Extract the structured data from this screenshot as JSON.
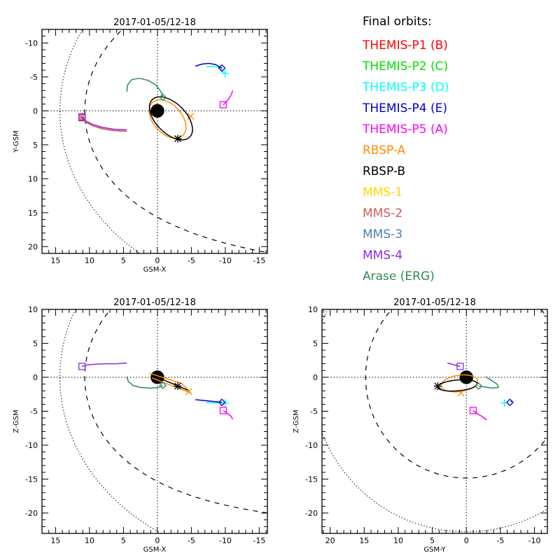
{
  "legend": {
    "title": "Final orbits:",
    "items": [
      {
        "label": "THEMIS-P1 (B)",
        "color": "#ff0000"
      },
      {
        "label": "THEMIS-P2 (C)",
        "color": "#00e000"
      },
      {
        "label": "THEMIS-P3 (D)",
        "color": "#00ffff"
      },
      {
        "label": "THEMIS-P4 (E)",
        "color": "#0000cc"
      },
      {
        "label": "THEMIS-P5 (A)",
        "color": "#ff00ff"
      },
      {
        "label": "RBSP-A",
        "color": "#ff8c00"
      },
      {
        "label": "RBSP-B",
        "color": "#000000"
      },
      {
        "label": "MMS-1",
        "color": "#ffd700"
      },
      {
        "label": "MMS-2",
        "color": "#cd5c5c"
      },
      {
        "label": "MMS-3",
        "color": "#4682b4"
      },
      {
        "label": "MMS-4",
        "color": "#8a2be2"
      },
      {
        "label": "Arase (ERG)",
        "color": "#2e8b57"
      }
    ]
  },
  "chart_data": [
    {
      "type": "line",
      "panel": "xy",
      "title": "2017-01-05/12-18",
      "xlabel": "GSM-X",
      "ylabel": "Y-GSM",
      "xlim": [
        17,
        -16.2
      ],
      "ylim": [
        -12,
        21
      ],
      "xticks": [
        15,
        10,
        5,
        0,
        -5,
        -10,
        -15
      ],
      "yticks": [
        -10,
        -5,
        0,
        5,
        10,
        15,
        20
      ],
      "xtick_labels": [
        "15",
        "10",
        "5",
        "0",
        "-5",
        "-10",
        "-15"
      ],
      "ytick_labels": [
        "-10",
        "-5",
        "0",
        "5",
        "10",
        "15",
        "20"
      ],
      "magnetopause": {
        "r0": 10.7,
        "alpha": 0.55
      },
      "bow_shock": {
        "L": 22.7,
        "eps": 0.58
      },
      "series": [
        {
          "name": "THEMIS-P1 (B)",
          "marker": "square",
          "points": [
            [
              11.1,
              1.0
            ],
            [
              10.5,
              1.6
            ],
            [
              9.5,
              2.1
            ],
            [
              8.2,
              2.5
            ],
            [
              6.5,
              2.8
            ],
            [
              4.5,
              2.9
            ]
          ],
          "offset": [
            0,
            0.1
          ]
        },
        {
          "name": "THEMIS-P3 (D)",
          "marker": "plus",
          "points": [
            [
              -7.2,
              -6.5
            ],
            [
              -8.5,
              -6.5
            ],
            [
              -9.3,
              -6.3
            ],
            [
              -9.7,
              -5.7
            ],
            [
              -10,
              -5.5
            ]
          ]
        },
        {
          "name": "THEMIS-P4 (E)",
          "marker": "diamond",
          "points": [
            [
              -5.6,
              -6.6
            ],
            [
              -6.6,
              -6.9
            ],
            [
              -7.6,
              -7.0
            ],
            [
              -8.6,
              -6.8
            ],
            [
              -9.3,
              -6.4
            ],
            [
              -9.5,
              -6.3
            ]
          ]
        },
        {
          "name": "THEMIS-P5 (A)",
          "marker": "square",
          "points": [
            [
              -11.1,
              -3.0
            ],
            [
              -10.8,
              -2.2
            ],
            [
              -10.3,
              -1.5
            ],
            [
              -9.7,
              -0.9
            ]
          ]
        },
        {
          "name": "RBSP-A",
          "marker": "x",
          "ellipse": {
            "cx": -1.5,
            "cy": 1.2,
            "rx": 3.3,
            "ry": 2.1,
            "rot": 48
          },
          "marker_at": [
            -4.9,
            0.8
          ]
        },
        {
          "name": "RBSP-B",
          "marker": "asterisk",
          "ellipse": {
            "cx": -2.0,
            "cy": 1.1,
            "rx": 3.9,
            "ry": 2.2,
            "rot": 45
          },
          "marker_at": [
            -3.0,
            4.1
          ]
        },
        {
          "name": "MMS-2",
          "marker": "asterisk",
          "points": [
            [
              11.1,
              1.0
            ],
            [
              10.5,
              1.7
            ],
            [
              9.5,
              2.2
            ],
            [
              8.2,
              2.6
            ],
            [
              6.5,
              2.9
            ],
            [
              4.5,
              3.0
            ]
          ]
        },
        {
          "name": "MMS-4",
          "marker": "square",
          "points": [
            [
              11.1,
              0.9
            ],
            [
              10.5,
              1.5
            ],
            [
              9.5,
              2.0
            ],
            [
              8.2,
              2.4
            ],
            [
              6.5,
              2.7
            ],
            [
              4.5,
              2.8
            ]
          ]
        },
        {
          "name": "Arase (ERG)",
          "marker": "diamond",
          "points": [
            [
              4.5,
              -2.8
            ],
            [
              4.4,
              -3.8
            ],
            [
              3.8,
              -4.6
            ],
            [
              2.7,
              -4.8
            ],
            [
              1.4,
              -4.5
            ],
            [
              0.2,
              -3.8
            ],
            [
              -0.6,
              -2.7
            ],
            [
              -0.8,
              -2.0
            ]
          ]
        }
      ]
    },
    {
      "type": "line",
      "panel": "xz",
      "title": "2017-01-05/12-18",
      "xlabel": "GSM-X",
      "ylabel": "Z-GSM",
      "xlim": [
        17,
        -16.2
      ],
      "ylim": [
        10,
        -23
      ],
      "xticks": [
        15,
        10,
        5,
        0,
        -5,
        -10,
        -15
      ],
      "yticks": [
        10,
        5,
        0,
        -5,
        -10,
        -15,
        -20
      ],
      "xtick_labels": [
        "15",
        "10",
        "5",
        "0",
        "-5",
        "-10",
        "-15"
      ],
      "ytick_labels": [
        "10",
        "5",
        "0",
        "-5",
        "-10",
        "-15",
        "-20"
      ],
      "magnetopause": {
        "r0": 10.7,
        "alpha": 0.52
      },
      "bow_shock": {
        "L": 22.7,
        "eps": 0.58
      },
      "series": [
        {
          "name": "THEMIS-P3 (D)",
          "marker": "plus",
          "points": [
            [
              -7.2,
              -3.7
            ],
            [
              -8.5,
              -3.8
            ],
            [
              -9.5,
              -3.7
            ],
            [
              -10,
              -3.8
            ]
          ]
        },
        {
          "name": "THEMIS-P4 (E)",
          "marker": "diamond",
          "points": [
            [
              -5.6,
              -3.3
            ],
            [
              -6.6,
              -3.4
            ],
            [
              -7.6,
              -3.5
            ],
            [
              -8.6,
              -3.6
            ],
            [
              -9.5,
              -3.7
            ]
          ]
        },
        {
          "name": "THEMIS-P5 (A)",
          "marker": "square",
          "points": [
            [
              -11.1,
              -6.2
            ],
            [
              -10.8,
              -5.7
            ],
            [
              -10.3,
              -5.3
            ],
            [
              -9.7,
              -4.9
            ]
          ]
        },
        {
          "name": "RBSP-A",
          "marker": "x",
          "segment": [
            [
              1.2,
              0.6
            ],
            [
              -3.6,
              -0.9
            ],
            [
              -4.9,
              -2.3
            ],
            [
              0.8,
              -0.1
            ]
          ],
          "marker_at": [
            -4.6,
            -2.1
          ]
        },
        {
          "name": "RBSP-B",
          "marker": "asterisk",
          "segment": [
            [
              0.5,
              0.2
            ],
            [
              -4.5,
              -1.9
            ]
          ],
          "marker_at": [
            -3.0,
            -1.3
          ]
        },
        {
          "name": "MMS-4",
          "marker": "square",
          "points": [
            [
              11.1,
              1.6
            ],
            [
              10.5,
              1.8
            ],
            [
              9.5,
              1.9
            ],
            [
              7.5,
              2.0
            ],
            [
              6.0,
              2.0
            ],
            [
              4.5,
              2.1
            ]
          ]
        },
        {
          "name": "Arase (ERG)",
          "marker": "diamond",
          "points": [
            [
              4.5,
              0.1
            ],
            [
              4.3,
              -0.6
            ],
            [
              3.6,
              -1.2
            ],
            [
              2.5,
              -1.5
            ],
            [
              1.0,
              -1.6
            ],
            [
              -0.2,
              -1.5
            ],
            [
              -0.8,
              -1.2
            ]
          ]
        }
      ]
    },
    {
      "type": "line",
      "panel": "yz",
      "title": "2017-01-05/12-18",
      "xlabel": "GSM-Y",
      "ylabel": "Z-GSM",
      "xlim": [
        21.2,
        -11.9
      ],
      "ylim": [
        10,
        -23
      ],
      "xticks": [
        20,
        15,
        10,
        5,
        0,
        -5,
        -10
      ],
      "yticks": [
        10,
        5,
        0,
        -5,
        -10,
        -15,
        -20
      ],
      "xtick_labels": [
        "20",
        "15",
        "10",
        "5",
        "0",
        "-5",
        "-10"
      ],
      "ytick_labels": [
        "10",
        "5",
        "0",
        "-5",
        "-10",
        "-15",
        "-20"
      ],
      "magnetopause_circle_r": 14.8,
      "bow_shock_circle_r": 22.7,
      "series": [
        {
          "name": "THEMIS-P3 (D)",
          "marker": "plus",
          "marker_at": [
            -5.6,
            -3.8
          ]
        },
        {
          "name": "THEMIS-P4 (E)",
          "marker": "diamond",
          "points": [
            [
              -6.8,
              -3.5
            ],
            [
              -6.5,
              -3.6
            ]
          ],
          "marker_at": [
            -6.4,
            -3.7
          ]
        },
        {
          "name": "THEMIS-P5 (A)",
          "marker": "square",
          "points": [
            [
              -3.0,
              -6.3
            ],
            [
              -2.2,
              -5.7
            ],
            [
              -1.5,
              -5.3
            ],
            [
              -1.0,
              -4.9
            ]
          ]
        },
        {
          "name": "RBSP-A",
          "marker": "x",
          "ellipse": {
            "cx": 1.0,
            "cy": -0.9,
            "rx": 2.7,
            "ry": 1.2,
            "rot": -8
          },
          "marker_at": [
            0.8,
            -2.3
          ]
        },
        {
          "name": "RBSP-B",
          "marker": "asterisk",
          "ellipse": {
            "cx": 1.3,
            "cy": -1.2,
            "rx": 2.9,
            "ry": 0.8,
            "rot": -5
          },
          "marker_at": [
            4.2,
            -1.3
          ]
        },
        {
          "name": "MMS-4",
          "marker": "square",
          "points": [
            [
              2.8,
              2.1
            ],
            [
              2.0,
              1.9
            ],
            [
              1.4,
              1.7
            ],
            [
              0.9,
              1.6
            ]
          ]
        },
        {
          "name": "Arase (ERG)",
          "marker": "diamond",
          "points": [
            [
              -2.8,
              0.1
            ],
            [
              -3.6,
              -0.4
            ],
            [
              -4.5,
              -1.0
            ],
            [
              -4.7,
              -1.5
            ],
            [
              -3.8,
              -1.6
            ],
            [
              -2.5,
              -1.4
            ],
            [
              -1.8,
              -1.3
            ]
          ]
        }
      ]
    }
  ]
}
